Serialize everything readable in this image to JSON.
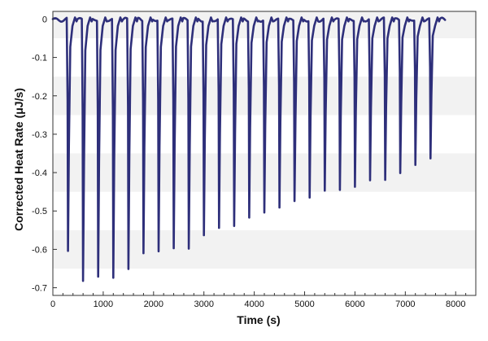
{
  "header": {
    "caption": ""
  },
  "chart_data": {
    "type": "line",
    "title": "",
    "xlabel": "Time (s)",
    "ylabel": "Corrected Heat Rate (μJ/s)",
    "xlim": [
      0,
      8400
    ],
    "ylim": [
      -0.72,
      0.02
    ],
    "x_ticks": [
      0,
      1000,
      2000,
      3000,
      4000,
      5000,
      6000,
      7000,
      8000
    ],
    "x_tick_labels": [
      "0",
      "1000",
      "2000",
      "3000",
      "4000",
      "5000",
      "6000",
      "7000",
      "8000"
    ],
    "y_ticks": [
      0,
      -0.1,
      -0.2,
      -0.3,
      -0.4,
      -0.5,
      -0.6,
      -0.7
    ],
    "y_tick_labels": [
      "0",
      "-0.1",
      "-0.2",
      "-0.3",
      "-0.4",
      "-0.5",
      "-0.6",
      "-0.7"
    ],
    "grid": "horizontal alternating bands",
    "legend": "none",
    "colors": {
      "series": "#2e2f7a",
      "band": "#f2f2f2",
      "axis": "#333333"
    },
    "series": [
      {
        "baseline_x": [
          0,
          7800
        ],
        "baseline_y": 0,
        "peaks": [
          {
            "x": 300,
            "y": -0.604
          },
          {
            "x": 600,
            "y": -0.682
          },
          {
            "x": 900,
            "y": -0.671
          },
          {
            "x": 1200,
            "y": -0.674
          },
          {
            "x": 1500,
            "y": -0.651
          },
          {
            "x": 1800,
            "y": -0.61
          },
          {
            "x": 2100,
            "y": -0.605
          },
          {
            "x": 2400,
            "y": -0.597
          },
          {
            "x": 2700,
            "y": -0.598
          },
          {
            "x": 3000,
            "y": -0.563
          },
          {
            "x": 3300,
            "y": -0.544
          },
          {
            "x": 3600,
            "y": -0.539
          },
          {
            "x": 3900,
            "y": -0.517
          },
          {
            "x": 4200,
            "y": -0.504
          },
          {
            "x": 4500,
            "y": -0.491
          },
          {
            "x": 4800,
            "y": -0.474
          },
          {
            "x": 5100,
            "y": -0.465
          },
          {
            "x": 5400,
            "y": -0.447
          },
          {
            "x": 5700,
            "y": -0.445
          },
          {
            "x": 6000,
            "y": -0.437
          },
          {
            "x": 6300,
            "y": -0.42
          },
          {
            "x": 6600,
            "y": -0.419
          },
          {
            "x": 6900,
            "y": -0.401
          },
          {
            "x": 7200,
            "y": -0.38
          },
          {
            "x": 7500,
            "y": -0.363
          }
        ]
      }
    ]
  }
}
